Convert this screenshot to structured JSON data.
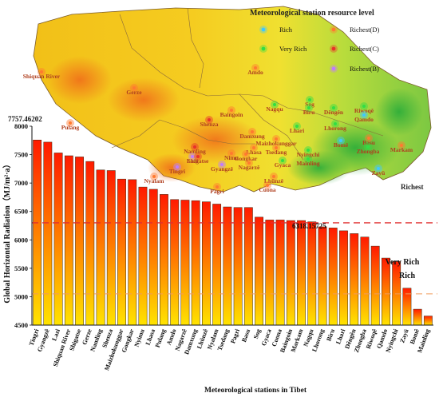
{
  "map": {
    "legend_title": "Meteorological station resource level",
    "legend": [
      {
        "label": "Rich",
        "color": "#40c8ff"
      },
      {
        "label": "Richest(D)",
        "color": "#ff7a30"
      },
      {
        "label": "Very Rich",
        "color": "#33dd44"
      },
      {
        "label": "Richest(C)",
        "color": "#e8322a"
      },
      {
        "label": "Richest(B)",
        "color": "#c07cff"
      }
    ],
    "region_label": "Richest",
    "stations": [
      {
        "name": "Shiquan River",
        "level": "Richest(D)"
      },
      {
        "name": "Gerze",
        "level": "Richest(D)"
      },
      {
        "name": "Amdo",
        "level": "Richest(D)"
      },
      {
        "name": "Sog",
        "level": "Very Rich"
      },
      {
        "name": "Biru",
        "level": "Very Rich"
      },
      {
        "name": "Dêngên",
        "level": "Very Rich"
      },
      {
        "name": "Riwoqê",
        "level": "Very Rich"
      },
      {
        "name": "Qamdo",
        "level": "Rich"
      },
      {
        "name": "Nagqu",
        "level": "Very Rich"
      },
      {
        "name": "Baingoin",
        "level": "Richest(D)"
      },
      {
        "name": "Lhari",
        "level": "Very Rich"
      },
      {
        "name": "Lhorong",
        "level": "Very Rich"
      },
      {
        "name": "Pulang",
        "level": "Richest(D)"
      },
      {
        "name": "Shenza",
        "level": "Richest(C)"
      },
      {
        "name": "Damxung",
        "level": "Richest(D)"
      },
      {
        "name": "Maizhokunggar",
        "level": "Richest(D)"
      },
      {
        "name": "Bomê",
        "level": "Rich"
      },
      {
        "name": "Basu",
        "level": "Richest(D)"
      },
      {
        "name": "Zhongba",
        "level": "Very Rich"
      },
      {
        "name": "Markam",
        "level": "Richest(D)"
      },
      {
        "name": "Namling",
        "level": "Richest(C)"
      },
      {
        "name": "Lhasa",
        "level": "Richest(D)"
      },
      {
        "name": "Tsedang",
        "level": "Richest(D)"
      },
      {
        "name": "Nyingchi",
        "level": "Very Rich"
      },
      {
        "name": "Mainling",
        "level": "Very Rich"
      },
      {
        "name": "Lazi",
        "level": "Richest(B)"
      },
      {
        "name": "Shigatse",
        "level": "Richest(C)"
      },
      {
        "name": "Nimu",
        "level": "Richest(D)"
      },
      {
        "name": "Gongkar",
        "level": "Richest(D)"
      },
      {
        "name": "Gyangzê",
        "level": "Richest(B)"
      },
      {
        "name": "Nagarzê",
        "level": "Richest(D)"
      },
      {
        "name": "Gyaca",
        "level": "Very Rich"
      },
      {
        "name": "Tingri",
        "level": "Richest(B)"
      },
      {
        "name": "Lhünzê",
        "level": "Richest(D)"
      },
      {
        "name": "Cuona",
        "level": "Richest(D)"
      },
      {
        "name": "Zayü",
        "level": "Rich"
      },
      {
        "name": "Nyalam",
        "level": "Richest(D)"
      },
      {
        "name": "Pagri",
        "level": "Richest(D)"
      }
    ]
  },
  "chart_data": {
    "type": "bar",
    "xlabel": "Meteorological stations in Tibet",
    "ylabel": "Global Horizontal Radiation（MJ/m²·a）",
    "ylim": [
      4500,
      8000
    ],
    "yticks": [
      4500,
      5000,
      5500,
      6000,
      6500,
      7000,
      7500,
      8000
    ],
    "categories": [
      "Tingri",
      "Gyangzê",
      "Lazi",
      "Shiquan River",
      "Shigatse",
      "Gerze",
      "Namling",
      "Shenza",
      "Maizhokunggar",
      "Gongkar",
      "Nyimu",
      "Lhasa",
      "Pulang",
      "Amdo",
      "Nagarzê",
      "Damxung",
      "Lhünzê",
      "Nyalam",
      "Tsedang",
      "Pagri",
      "Basu",
      "Sog",
      "Gyaca",
      "Cuona",
      "Baingoin",
      "Markam",
      "Nagqu",
      "Lhorong",
      "Biru",
      "Lhari",
      "Dêngên",
      "Zhongba",
      "Riwoqê",
      "Qamdo",
      "Nyingchi",
      "Zayü",
      "Bomê",
      "Mainling"
    ],
    "values": [
      7757.46,
      7720,
      7530,
      7480,
      7460,
      7380,
      7230,
      7220,
      7070,
      7060,
      6930,
      6890,
      6800,
      6710,
      6700,
      6690,
      6670,
      6630,
      6580,
      6570,
      6570,
      6400,
      6350,
      6350,
      6340,
      6340,
      6318.16,
      6230,
      6210,
      6160,
      6110,
      6050,
      5890,
      5680,
      5620,
      5150,
      4780,
      4660
    ],
    "annotations": [
      {
        "text": "7757.46202"
      },
      {
        "text": "6318.15725"
      }
    ],
    "thresholds": [
      {
        "value": 6300,
        "color": "#e03030",
        "label": "Very Rich"
      },
      {
        "value": 5050,
        "color": "#f09a5a",
        "label": "Rich"
      }
    ],
    "bar_gradient": {
      "top": "#ff1a00",
      "bottom": "#ffe400"
    }
  }
}
